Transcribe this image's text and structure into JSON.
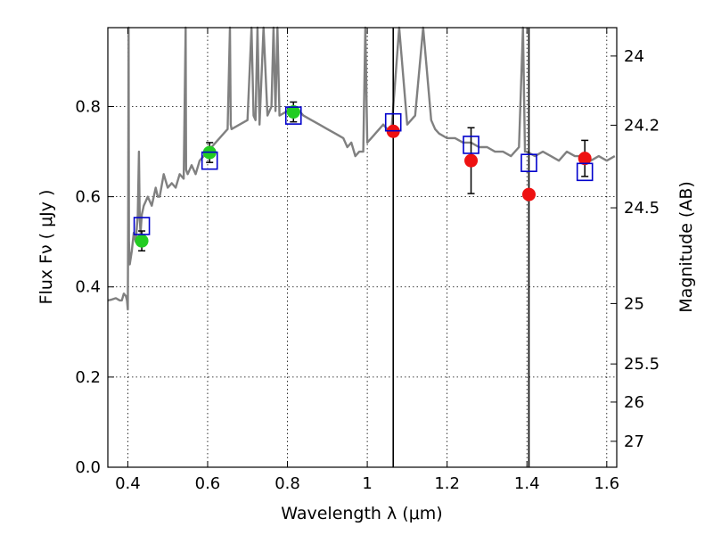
{
  "chart_data": {
    "type": "scatter",
    "xlabel": "Wavelength  λ (μm)",
    "ylabel": "Flux  Fν  ( μJy )",
    "y2label": "Magnitude (AB)",
    "xlim": [
      0.35,
      1.625
    ],
    "ylim": [
      0.0,
      0.975
    ],
    "grid": true,
    "x_ticks": [
      {
        "value": 0.4,
        "label": "0.4"
      },
      {
        "value": 0.6,
        "label": "0.6"
      },
      {
        "value": 0.8,
        "label": "0.8"
      },
      {
        "value": 1.0,
        "label": "1"
      },
      {
        "value": 1.2,
        "label": "1.2"
      },
      {
        "value": 1.4,
        "label": "1.4"
      },
      {
        "value": 1.6,
        "label": "1.6"
      }
    ],
    "y_ticks": [
      {
        "value": 0.0,
        "label": "0.0"
      },
      {
        "value": 0.2,
        "label": "0.2"
      },
      {
        "value": 0.4,
        "label": "0.4"
      },
      {
        "value": 0.6,
        "label": "0.6"
      },
      {
        "value": 0.8,
        "label": "0.8"
      }
    ],
    "mag_ticks": [
      {
        "flux": 0.912,
        "label": "24"
      },
      {
        "flux": 0.7586,
        "label": "24.2"
      },
      {
        "flux": 0.5754,
        "label": "24.5"
      },
      {
        "flux": 0.3631,
        "label": "25"
      },
      {
        "flux": 0.2291,
        "label": "25.5"
      },
      {
        "flux": 0.1445,
        "label": "26"
      },
      {
        "flux": 0.0575,
        "label": "27"
      }
    ],
    "vertical_lines": [
      1.065,
      1.405
    ],
    "colors": {
      "sed": "#808080",
      "detected": "#22cc22",
      "upper": "#ee1111",
      "model": "#0000cc",
      "errorbar": "#000000"
    },
    "sed_model": {
      "x": [
        0.35,
        0.36,
        0.37,
        0.38,
        0.385,
        0.39,
        0.395,
        0.398,
        0.4,
        0.401,
        0.402,
        0.403,
        0.405,
        0.41,
        0.415,
        0.42,
        0.425,
        0.428,
        0.43,
        0.432,
        0.435,
        0.44,
        0.45,
        0.46,
        0.47,
        0.475,
        0.48,
        0.49,
        0.5,
        0.51,
        0.52,
        0.53,
        0.54,
        0.545,
        0.546,
        0.55,
        0.555,
        0.56,
        0.57,
        0.58,
        0.6,
        0.62,
        0.64,
        0.65,
        0.656,
        0.658,
        0.66,
        0.68,
        0.7,
        0.71,
        0.715,
        0.72,
        0.725,
        0.73,
        0.74,
        0.75,
        0.76,
        0.765,
        0.77,
        0.775,
        0.78,
        0.8,
        0.82,
        0.84,
        0.86,
        0.88,
        0.9,
        0.92,
        0.94,
        0.95,
        0.96,
        0.97,
        0.98,
        0.99,
        0.995,
        1.0,
        1.01,
        1.02,
        1.04,
        1.06,
        1.08,
        1.1,
        1.12,
        1.14,
        1.16,
        1.17,
        1.18,
        1.2,
        1.22,
        1.24,
        1.26,
        1.28,
        1.3,
        1.32,
        1.34,
        1.36,
        1.38,
        1.39,
        1.395,
        1.4,
        1.42,
        1.44,
        1.46,
        1.48,
        1.5,
        1.52,
        1.54,
        1.56,
        1.58,
        1.6,
        1.62
      ],
      "y": [
        0.37,
        0.372,
        0.375,
        0.37,
        0.37,
        0.385,
        0.38,
        0.37,
        0.35,
        0.55,
        0.975,
        0.5,
        0.45,
        0.48,
        0.52,
        0.5,
        0.56,
        0.7,
        0.55,
        0.52,
        0.56,
        0.58,
        0.6,
        0.58,
        0.62,
        0.6,
        0.6,
        0.65,
        0.62,
        0.63,
        0.62,
        0.65,
        0.64,
        0.975,
        0.66,
        0.65,
        0.66,
        0.67,
        0.65,
        0.68,
        0.7,
        0.72,
        0.74,
        0.75,
        0.975,
        0.76,
        0.75,
        0.76,
        0.77,
        0.975,
        0.78,
        0.77,
        0.975,
        0.76,
        0.975,
        0.78,
        0.8,
        0.975,
        0.79,
        0.975,
        0.78,
        0.79,
        0.8,
        0.78,
        0.77,
        0.76,
        0.75,
        0.74,
        0.73,
        0.71,
        0.72,
        0.69,
        0.7,
        0.7,
        0.975,
        0.72,
        0.73,
        0.74,
        0.76,
        0.74,
        0.975,
        0.76,
        0.78,
        0.975,
        0.77,
        0.75,
        0.74,
        0.73,
        0.73,
        0.72,
        0.72,
        0.71,
        0.71,
        0.7,
        0.7,
        0.69,
        0.71,
        0.975,
        0.7,
        0.7,
        0.69,
        0.7,
        0.69,
        0.68,
        0.7,
        0.69,
        0.69,
        0.68,
        0.69,
        0.68,
        0.69
      ]
    },
    "series": [
      {
        "marker": "circle",
        "color": "#22cc22",
        "x": [
          0.435,
          0.605,
          0.815
        ],
        "y": [
          0.502,
          0.698,
          0.788
        ],
        "yerr": [
          0.022,
          0.022,
          0.022
        ]
      },
      {
        "marker": "circle",
        "color": "#ee1111",
        "x": [
          1.065,
          1.26,
          1.405,
          1.545
        ],
        "y": [
          0.745,
          0.68,
          0.605,
          0.685
        ],
        "yerr": [
          0.0,
          0.073,
          0.0,
          0.04
        ]
      },
      {
        "marker": "square-open",
        "color": "#0000cc",
        "x": [
          0.435,
          0.605,
          0.815,
          1.065,
          1.26,
          1.405,
          1.545
        ],
        "y": [
          0.535,
          0.68,
          0.78,
          0.765,
          0.715,
          0.675,
          0.655
        ]
      }
    ]
  }
}
